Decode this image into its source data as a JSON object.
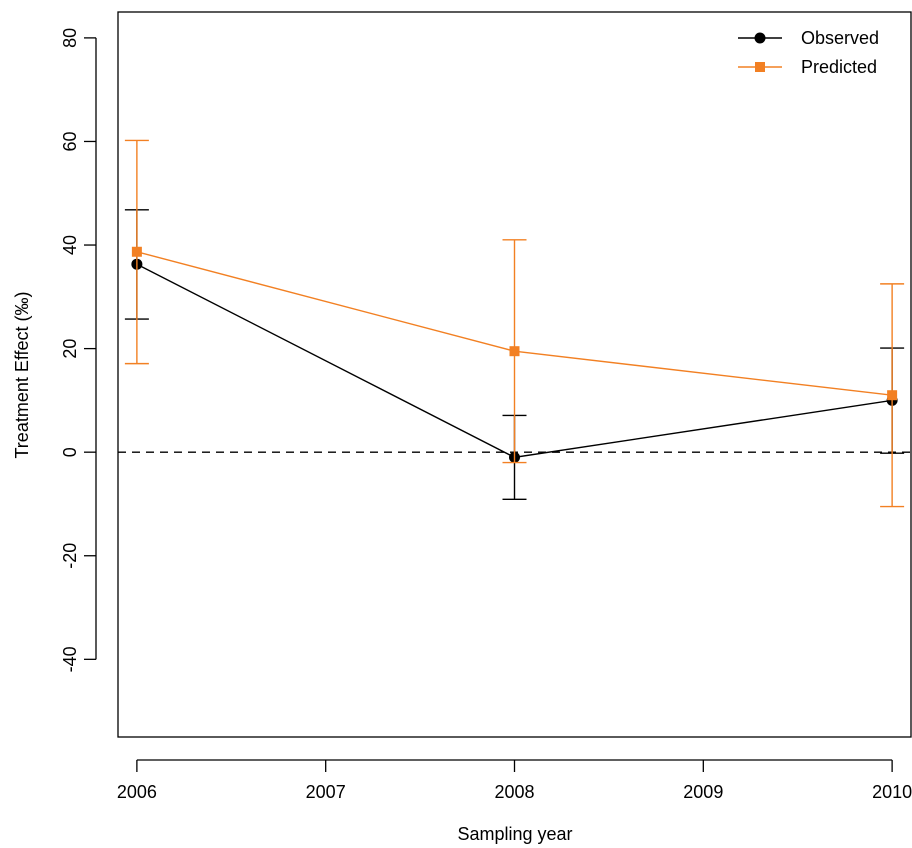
{
  "chart_data": {
    "type": "line",
    "xlabel": "Sampling year",
    "ylabel": "Treatment Effect (‰)",
    "xlim": [
      2005.9,
      2010.1
    ],
    "ylim": [
      -55,
      85
    ],
    "x_ticks": [
      2006,
      2007,
      2008,
      2009,
      2010
    ],
    "y_ticks": [
      -40,
      -20,
      0,
      20,
      40,
      60,
      80
    ],
    "reference_line": {
      "y": 0,
      "style": "dashed"
    },
    "grid": false,
    "legend_position": "top-right",
    "series": [
      {
        "name": "Observed",
        "color": "#000000",
        "marker": "circle",
        "x": [
          2006,
          2008,
          2010
        ],
        "y": [
          36.3,
          -1.0,
          10.0
        ],
        "y_lower": [
          25.7,
          -9.1,
          -0.2
        ],
        "y_upper": [
          46.8,
          7.1,
          20.1
        ]
      },
      {
        "name": "Predicted",
        "color": "#F28023",
        "marker": "square",
        "x": [
          2006,
          2008,
          2010
        ],
        "y": [
          38.7,
          19.5,
          11.0
        ],
        "y_lower": [
          17.1,
          -2.0,
          -10.5
        ],
        "y_upper": [
          60.2,
          41.0,
          32.5
        ]
      }
    ]
  }
}
